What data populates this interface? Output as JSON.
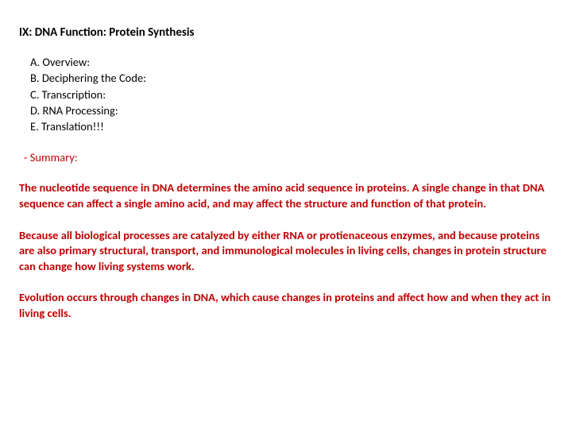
{
  "title": "IX: DNA Function: Protein Synthesis",
  "outline": {
    "a": "A. Overview:",
    "b": "B. Deciphering the Code:",
    "c": "C. Transcription:",
    "d": "D. RNA Processing:",
    "e": "E. Translation!!!"
  },
  "summaryLabel": "- Summary:",
  "paragraphs": {
    "p1": "The nucleotide sequence in DNA determines the amino acid sequence in proteins. A single change in that DNA sequence can affect a single amino acid, and may affect the structure and function of that protein.",
    "p2": "Because all biological processes are catalyzed by either RNA or protienaceous enzymes, and because proteins are also primary structural, transport, and immunological molecules in living cells, changes in protein structure can change how living systems work.",
    "p3": "Evolution occurs through changes in DNA, which cause changes in proteins and affect how and when they act in living cells."
  },
  "colors": {
    "text_black": "#000000",
    "text_red": "#c00000",
    "background": "#ffffff"
  },
  "typography": {
    "title_fontsize": 15,
    "body_fontsize": 14.5,
    "title_weight": "bold",
    "paragraph_weight": "bold",
    "outline_weight": "normal"
  }
}
